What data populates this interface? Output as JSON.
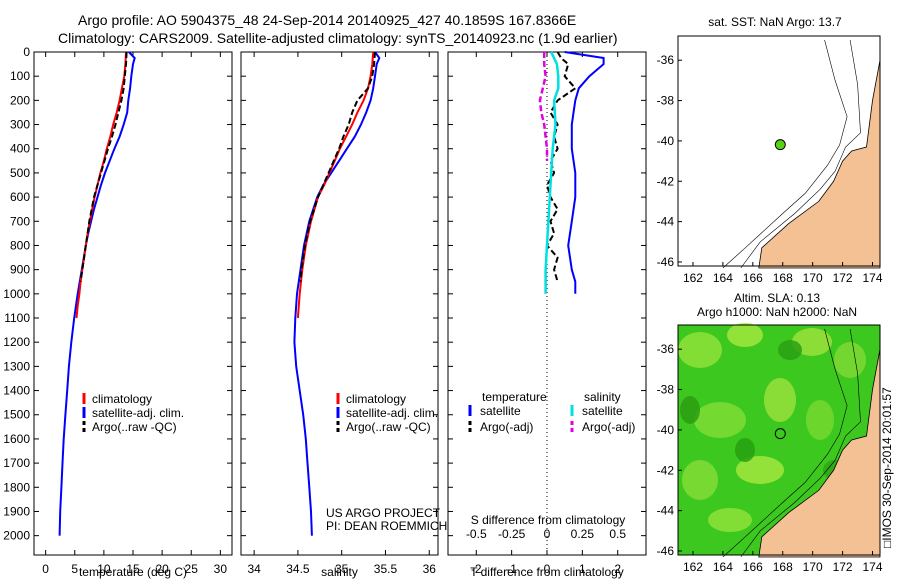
{
  "header": {
    "line1": "Argo profile: AO 5904375_48 24-Sep-2014 20140925_427 40.1859S 167.8366E",
    "line2": "Climatology: CARS2009. Satellite-adjusted climatology: synTS_20140923.nc (1.9d earlier)"
  },
  "map_top": {
    "title": "sat. SST: NaN  Argo: 13.7",
    "xticks": [
      "162",
      "164",
      "166",
      "168",
      "170",
      "172",
      "174"
    ],
    "yticks": [
      "-36",
      "-38",
      "-40",
      "-42",
      "-44",
      "-46"
    ]
  },
  "map_bottom": {
    "title_line1": "Altim. SLA: 0.13",
    "title_line2": "Argo h1000: NaN  h2000: NaN",
    "xticks": [
      "162",
      "164",
      "166",
      "168",
      "170",
      "172",
      "174"
    ],
    "yticks": [
      "-36",
      "-38",
      "-40",
      "-42",
      "-44",
      "-46"
    ]
  },
  "argo_position": {
    "lon": 167.8366,
    "lat": -40.1859
  },
  "credit": {
    "line1": "US ARGO PROJECT",
    "line2": "PI: DEAN ROEMMICH"
  },
  "timestamp": "□IMOS 30-Sep-2014 20:01:57",
  "colors": {
    "climatology": "#ff0000",
    "satellite": "#0000ff",
    "argo": "#000000",
    "sal_satellite": "#00e0e0",
    "sal_argo": "#e000e0",
    "land": "#f4c194"
  },
  "chart_data": [
    {
      "type": "line",
      "title": "temperature",
      "xlabel": "temperature (deg C)",
      "ylabel": "depth",
      "xlim": [
        -2,
        32
      ],
      "ylim": [
        2080,
        0
      ],
      "xticks": [
        0,
        5,
        10,
        15,
        20,
        25,
        30
      ],
      "yticks": [
        0,
        100,
        200,
        300,
        400,
        500,
        600,
        700,
        800,
        900,
        1000,
        1100,
        1200,
        1300,
        1400,
        1500,
        1600,
        1700,
        1800,
        1900,
        2000
      ],
      "legend": [
        "climatology",
        "satellite-adj. clim.",
        "Argo(..raw -QC)"
      ],
      "series": [
        {
          "name": "climatology",
          "depth": [
            0,
            50,
            100,
            150,
            200,
            250,
            300,
            350,
            400,
            450,
            500,
            550,
            600,
            650,
            700,
            750,
            800,
            850,
            900,
            950,
            1000,
            1050,
            1100
          ],
          "values": [
            13.8,
            13.7,
            13.5,
            13.1,
            12.7,
            12.2,
            11.6,
            11.1,
            10.5,
            10.0,
            9.4,
            8.9,
            8.4,
            8.0,
            7.6,
            7.2,
            6.9,
            6.6,
            6.3,
            6.0,
            5.8,
            5.5,
            5.3
          ]
        },
        {
          "name": "satellite-adj. clim.",
          "depth": [
            0,
            25,
            50,
            100,
            150,
            200,
            250,
            300,
            350,
            400,
            450,
            500,
            550,
            600,
            650,
            700,
            750,
            800,
            900,
            1000,
            1100,
            1200,
            1300,
            1400,
            1500,
            1600,
            1700,
            1800,
            1900,
            2000
          ],
          "values": [
            14.3,
            15.3,
            15.0,
            14.7,
            14.5,
            14.2,
            14.0,
            13.4,
            12.7,
            11.8,
            11.0,
            10.2,
            9.5,
            8.9,
            8.3,
            7.8,
            7.3,
            6.9,
            6.2,
            5.5,
            4.9,
            4.4,
            4.0,
            3.7,
            3.4,
            3.1,
            2.9,
            2.7,
            2.5,
            2.4
          ]
        },
        {
          "name": "Argo(..raw -QC)",
          "depth": [
            0,
            50,
            100,
            150,
            200,
            250,
            300,
            350,
            400,
            450,
            500,
            550,
            600,
            650,
            700,
            750,
            800,
            850,
            900,
            950
          ],
          "values": [
            13.9,
            13.8,
            13.6,
            13.4,
            13.0,
            12.5,
            12.0,
            11.4,
            10.7,
            10.1,
            9.5,
            8.9,
            8.3,
            7.9,
            7.5,
            7.2,
            6.9,
            6.6,
            6.3,
            6.0
          ]
        }
      ]
    },
    {
      "type": "line",
      "title": "salinity",
      "xlabel": "salinity",
      "ylabel": "depth",
      "xlim": [
        33.85,
        36.1
      ],
      "ylim": [
        2080,
        0
      ],
      "xticks": [
        34,
        34.5,
        35,
        35.5,
        36
      ],
      "legend": [
        "climatology",
        "satellite-adj. clim.",
        "Argo(..raw -QC)"
      ],
      "series": [
        {
          "name": "climatology",
          "depth": [
            0,
            50,
            100,
            150,
            200,
            250,
            300,
            350,
            400,
            450,
            500,
            550,
            600,
            700,
            800,
            900,
            1000,
            1100
          ],
          "values": [
            35.36,
            35.35,
            35.33,
            35.3,
            35.25,
            35.18,
            35.12,
            35.05,
            34.98,
            34.92,
            34.86,
            34.8,
            34.73,
            34.65,
            34.59,
            34.55,
            34.52,
            34.5
          ]
        },
        {
          "name": "satellite-adj. clim.",
          "depth": [
            0,
            25,
            50,
            100,
            150,
            200,
            250,
            300,
            350,
            400,
            450,
            500,
            550,
            600,
            700,
            800,
            900,
            1000,
            1100,
            1200,
            1300,
            1400,
            1500,
            1600,
            1700,
            1800,
            1900,
            2000
          ],
          "values": [
            35.38,
            35.43,
            35.4,
            35.38,
            35.36,
            35.33,
            35.28,
            35.22,
            35.15,
            35.06,
            34.97,
            34.88,
            34.79,
            34.72,
            34.63,
            34.57,
            34.53,
            34.49,
            34.47,
            34.46,
            34.48,
            34.52,
            34.56,
            34.59,
            34.61,
            34.63,
            34.65,
            34.66
          ]
        },
        {
          "name": "Argo(..raw -QC)",
          "depth": [
            0,
            50,
            100,
            150,
            200,
            250,
            300,
            350,
            400,
            450,
            500,
            550,
            600,
            700,
            800,
            900,
            950
          ],
          "values": [
            35.38,
            35.37,
            35.35,
            35.3,
            35.18,
            35.12,
            35.08,
            35.02,
            34.97,
            34.91,
            34.85,
            34.79,
            34.73,
            34.64,
            34.58,
            34.54,
            34.53
          ]
        }
      ]
    },
    {
      "type": "line",
      "title": "difference from climatology",
      "xlabel": "T difference from climatology",
      "xlabel_top": "S difference from climatology",
      "xlim": [
        -2.8,
        2.8
      ],
      "ylim": [
        2080,
        0
      ],
      "xticks": [
        -2,
        -1,
        0,
        1,
        2
      ],
      "top_ticks": [
        "-0.5",
        "-0.25",
        "0",
        "0.25",
        "0.5"
      ],
      "legend_headers": [
        "temperature",
        "salinity"
      ],
      "legend": [
        "satellite",
        "Argo(-adj)",
        "satellite",
        "Argo(-adj)"
      ],
      "series": [
        {
          "name": "T satellite",
          "depth": [
            0,
            25,
            50,
            100,
            150,
            200,
            300,
            400,
            500,
            600,
            700,
            800,
            900,
            950,
            1000
          ],
          "values": [
            0.5,
            1.6,
            1.6,
            1.2,
            0.9,
            0.8,
            0.7,
            0.7,
            0.8,
            0.8,
            0.7,
            0.6,
            0.7,
            0.8,
            0.8
          ]
        },
        {
          "name": "T Argo(-adj)",
          "depth": [
            0,
            25,
            50,
            100,
            150,
            200,
            250,
            300,
            350,
            400,
            450,
            500,
            550,
            600,
            650,
            700,
            750,
            800,
            850,
            900,
            950
          ],
          "values": [
            0.3,
            0.4,
            0.6,
            0.5,
            0.8,
            0.3,
            0.1,
            0.3,
            0.2,
            0.3,
            0.1,
            0.2,
            0.0,
            0.1,
            0.3,
            0.1,
            0.2,
            0.0,
            0.3,
            0.2,
            0.3
          ]
        },
        {
          "name": "S satellite",
          "depth": [
            0,
            50,
            100,
            150,
            200,
            300,
            400,
            500,
            600,
            700,
            800,
            900,
            1000
          ],
          "values": [
            0.03,
            0.07,
            0.08,
            0.08,
            0.05,
            0.06,
            0.04,
            0.03,
            0.02,
            0.01,
            0.0,
            -0.01,
            -0.01
          ]
        },
        {
          "name": "S Argo(-adj)",
          "depth": [
            0,
            50,
            100,
            150,
            200,
            250,
            300,
            350,
            400,
            450
          ],
          "values": [
            -0.02,
            -0.02,
            -0.01,
            -0.03,
            -0.05,
            -0.04,
            -0.02,
            -0.01,
            0.0,
            0.0
          ]
        }
      ]
    }
  ]
}
